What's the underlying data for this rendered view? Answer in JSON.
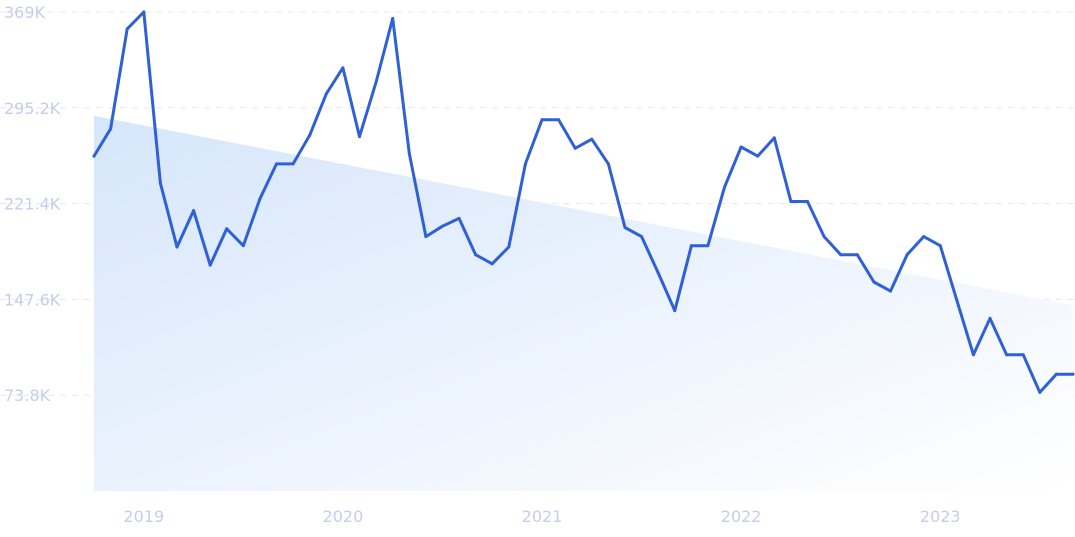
{
  "chart_data": {
    "type": "line",
    "title": "",
    "xlabel": "",
    "ylabel": "",
    "ylim": [
      0,
      369000
    ],
    "y_ticks": [
      "73.8K",
      "147.6K",
      "221.4K",
      "295.2K",
      "369K"
    ],
    "y_tick_values": [
      73800,
      147600,
      221400,
      295200,
      369000
    ],
    "x_ticks": [
      "2019",
      "2020",
      "2021",
      "2022",
      "2023"
    ],
    "x_tick_values": [
      "2019-01",
      "2020-01",
      "2021-01",
      "2022-01",
      "2023-01"
    ],
    "grid": true,
    "line_color": "#3060d8",
    "trend_fill_color": "#d6e6fb",
    "trend": {
      "start": [
        "2018-10",
        289000
      ],
      "end": [
        "2023-09",
        143000
      ]
    },
    "series": [
      {
        "x": [
          "2018-10",
          "2018-11",
          "2018-12",
          "2019-01",
          "2019-02",
          "2019-03",
          "2019-04",
          "2019-05",
          "2019-06",
          "2019-07",
          "2019-08",
          "2019-09",
          "2019-10",
          "2019-11",
          "2019-12",
          "2020-01",
          "2020-02",
          "2020-03",
          "2020-04",
          "2020-05",
          "2020-06",
          "2020-07",
          "2020-08",
          "2020-09",
          "2020-10",
          "2020-11",
          "2020-12",
          "2021-01",
          "2021-02",
          "2021-03",
          "2021-04",
          "2021-05",
          "2021-06",
          "2021-07",
          "2021-08",
          "2021-09",
          "2021-10",
          "2021-11",
          "2021-12",
          "2022-01",
          "2022-02",
          "2022-03",
          "2022-04",
          "2022-05",
          "2022-06",
          "2022-07",
          "2022-08",
          "2022-09",
          "2022-10",
          "2022-11",
          "2022-12",
          "2023-01",
          "2023-02",
          "2023-03",
          "2023-04",
          "2023-05",
          "2023-06",
          "2023-07",
          "2023-08",
          "2023-09"
        ],
        "values": [
          258000,
          279000,
          356000,
          369000,
          237000,
          188000,
          216000,
          174000,
          202000,
          189000,
          225000,
          252000,
          252000,
          274000,
          306000,
          326000,
          273000,
          315000,
          364000,
          260000,
          196000,
          204000,
          210000,
          182000,
          175000,
          188000,
          252000,
          286000,
          286000,
          264000,
          271000,
          252000,
          203000,
          196000,
          168000,
          139000,
          189000,
          189000,
          234000,
          265000,
          258000,
          272000,
          223000,
          223000,
          196000,
          182000,
          182000,
          161000,
          154000,
          182000,
          196000,
          189000,
          147000,
          105000,
          133000,
          105000,
          105000,
          76000,
          90000,
          90000
        ]
      }
    ]
  }
}
